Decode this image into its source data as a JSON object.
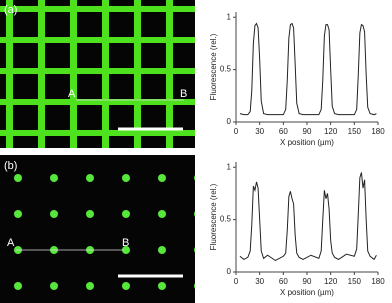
{
  "panels": [
    {
      "label": "(a)",
      "point_a": "A",
      "point_b": "B"
    },
    {
      "label": "(b)",
      "point_a": "A",
      "point_b": "B"
    }
  ],
  "chart_data": [
    {
      "type": "line",
      "xlabel": "X position (µm)",
      "ylabel": "Fluorescence (rel.)",
      "x": [
        5,
        10,
        15,
        18,
        20,
        22,
        24,
        26,
        28,
        30,
        32,
        35,
        40,
        50,
        60,
        63,
        65,
        67,
        69,
        71,
        73,
        75,
        77,
        80,
        85,
        95,
        105,
        108,
        110,
        112,
        114,
        116,
        118,
        120,
        122,
        125,
        130,
        140,
        150,
        153,
        155,
        157,
        159,
        161,
        163,
        165,
        167,
        170,
        175,
        178
      ],
      "series": [
        {
          "color": "#222222",
          "values": [
            0.08,
            0.07,
            0.07,
            0.1,
            0.3,
            0.75,
            0.92,
            0.94,
            0.9,
            0.6,
            0.2,
            0.08,
            0.07,
            0.07,
            0.07,
            0.12,
            0.4,
            0.8,
            0.93,
            0.94,
            0.9,
            0.55,
            0.18,
            0.08,
            0.07,
            0.07,
            0.07,
            0.12,
            0.4,
            0.82,
            0.93,
            0.93,
            0.88,
            0.5,
            0.15,
            0.08,
            0.07,
            0.07,
            0.07,
            0.12,
            0.45,
            0.85,
            0.93,
            0.92,
            0.86,
            0.45,
            0.14,
            0.08,
            0.07,
            0.08
          ]
        }
      ],
      "xlim": [
        0,
        180
      ],
      "xticks": [
        0,
        30,
        60,
        90,
        120,
        150,
        180
      ],
      "ylim": [
        0,
        1.05
      ],
      "yticks": [
        0,
        0.5,
        1
      ]
    },
    {
      "type": "line",
      "xlabel": "X position (µm)",
      "ylabel": "Fluorescence (rel.)",
      "x": [
        5,
        10,
        15,
        18,
        20,
        22,
        24,
        26,
        28,
        30,
        32,
        35,
        40,
        50,
        60,
        63,
        65,
        67,
        69,
        71,
        73,
        75,
        77,
        80,
        85,
        95,
        105,
        108,
        110,
        112,
        114,
        116,
        118,
        120,
        122,
        125,
        130,
        140,
        150,
        153,
        155,
        157,
        159,
        161,
        163,
        165,
        167,
        170,
        175,
        178
      ],
      "series": [
        {
          "color": "#222222",
          "values": [
            0.15,
            0.12,
            0.14,
            0.2,
            0.45,
            0.82,
            0.78,
            0.86,
            0.8,
            0.5,
            0.2,
            0.13,
            0.16,
            0.11,
            0.15,
            0.18,
            0.4,
            0.72,
            0.77,
            0.7,
            0.65,
            0.35,
            0.18,
            0.14,
            0.12,
            0.16,
            0.13,
            0.2,
            0.5,
            0.78,
            0.7,
            0.75,
            0.6,
            0.3,
            0.18,
            0.14,
            0.12,
            0.17,
            0.15,
            0.22,
            0.55,
            0.9,
            0.95,
            0.8,
            0.88,
            0.5,
            0.2,
            0.15,
            0.12,
            0.16
          ]
        }
      ],
      "xlim": [
        0,
        180
      ],
      "xticks": [
        0,
        30,
        60,
        90,
        120,
        150,
        180
      ],
      "ylim": [
        0,
        1.05
      ],
      "yticks": [
        0,
        0.5,
        1
      ]
    }
  ]
}
